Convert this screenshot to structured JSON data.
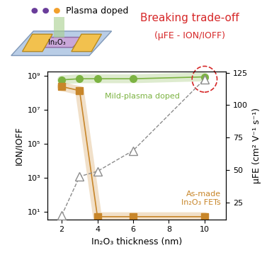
{
  "chart_data": {
    "type": "line",
    "x": [
      2,
      3,
      4,
      6,
      10
    ],
    "xlabel": "In₂O₃ thickness (nm)",
    "ylabel": "ION/IOFF",
    "y2label": "μFE (cm² V⁻¹ s⁻¹)",
    "xlim": [
      1.2,
      11.2
    ],
    "xticks": [
      2,
      4,
      6,
      8,
      10
    ],
    "log": "y",
    "ylim": [
      3.5,
      1900000000
    ],
    "yticks": [
      {
        "value": 10,
        "label": "10¹"
      },
      {
        "value": 1000,
        "label": "10³"
      },
      {
        "value": 100000,
        "label": "10⁵"
      },
      {
        "value": 10000000,
        "label": "10⁷"
      },
      {
        "value": 1000000000,
        "label": "10⁹"
      }
    ],
    "y2lim": [
      12,
      126
    ],
    "y2ticks": [
      25,
      50,
      75,
      100,
      125
    ],
    "series": [
      {
        "name": "Mild-plasma doped",
        "color": "#7cb342",
        "marker": "circle",
        "line_style": "solid",
        "values": [
          600000000,
          700000000,
          700000000,
          700000000,
          900000000
        ]
      },
      {
        "name": "As-made\nIn₂O₃ FETs",
        "color": "#c8862a",
        "marker": "square",
        "line_style": "solid",
        "values": [
          240000000,
          140000000,
          5,
          5,
          5
        ]
      },
      {
        "color": "#8c8c8c",
        "marker": "triangle",
        "line_style": "dashed",
        "axis": "y2",
        "values": [
          15,
          45,
          49,
          65,
          120
        ]
      }
    ],
    "annotations": [
      "Plasma doped",
      "In₂O₃",
      "Breaking trade-off",
      "(μFE - ION/IOFF)"
    ]
  }
}
